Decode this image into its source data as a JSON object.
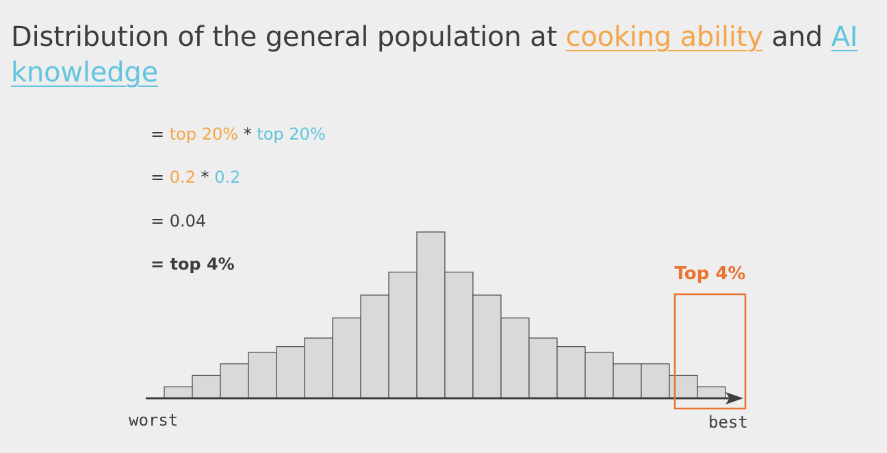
{
  "title": {
    "prefix": "Distribution of the general population at ",
    "highlight1": "cooking ability",
    "middle": " and ",
    "highlight2": "AI knowledge"
  },
  "equations": {
    "line1": {
      "eq": "= ",
      "a": "top 20%",
      "op": " * ",
      "b": "top 20%"
    },
    "line2": {
      "eq": "= ",
      "a": "0.2",
      "op": " * ",
      "b": "0.2"
    },
    "line3": "= 0.04",
    "line4": "= top 4%"
  },
  "colors": {
    "orange": "#f4a54a",
    "blue": "#62c4df",
    "highlight_box": "#ea7331",
    "bar_fill": "#d9d9d9",
    "bar_stroke": "#444444",
    "text": "#3d3d3d"
  },
  "chart_data": {
    "type": "bar",
    "values": [
      2,
      4,
      6,
      8,
      9,
      10.5,
      14,
      18,
      22,
      29,
      22,
      18,
      14,
      10.5,
      9,
      8,
      6,
      6,
      4,
      2
    ],
    "ylim": [
      0,
      29
    ],
    "xlabel_left": "worst",
    "xlabel_right": "best",
    "highlight": {
      "label": "Top 4%",
      "bar_index_start": 18,
      "bar_index_end": 19
    },
    "grid": false
  }
}
